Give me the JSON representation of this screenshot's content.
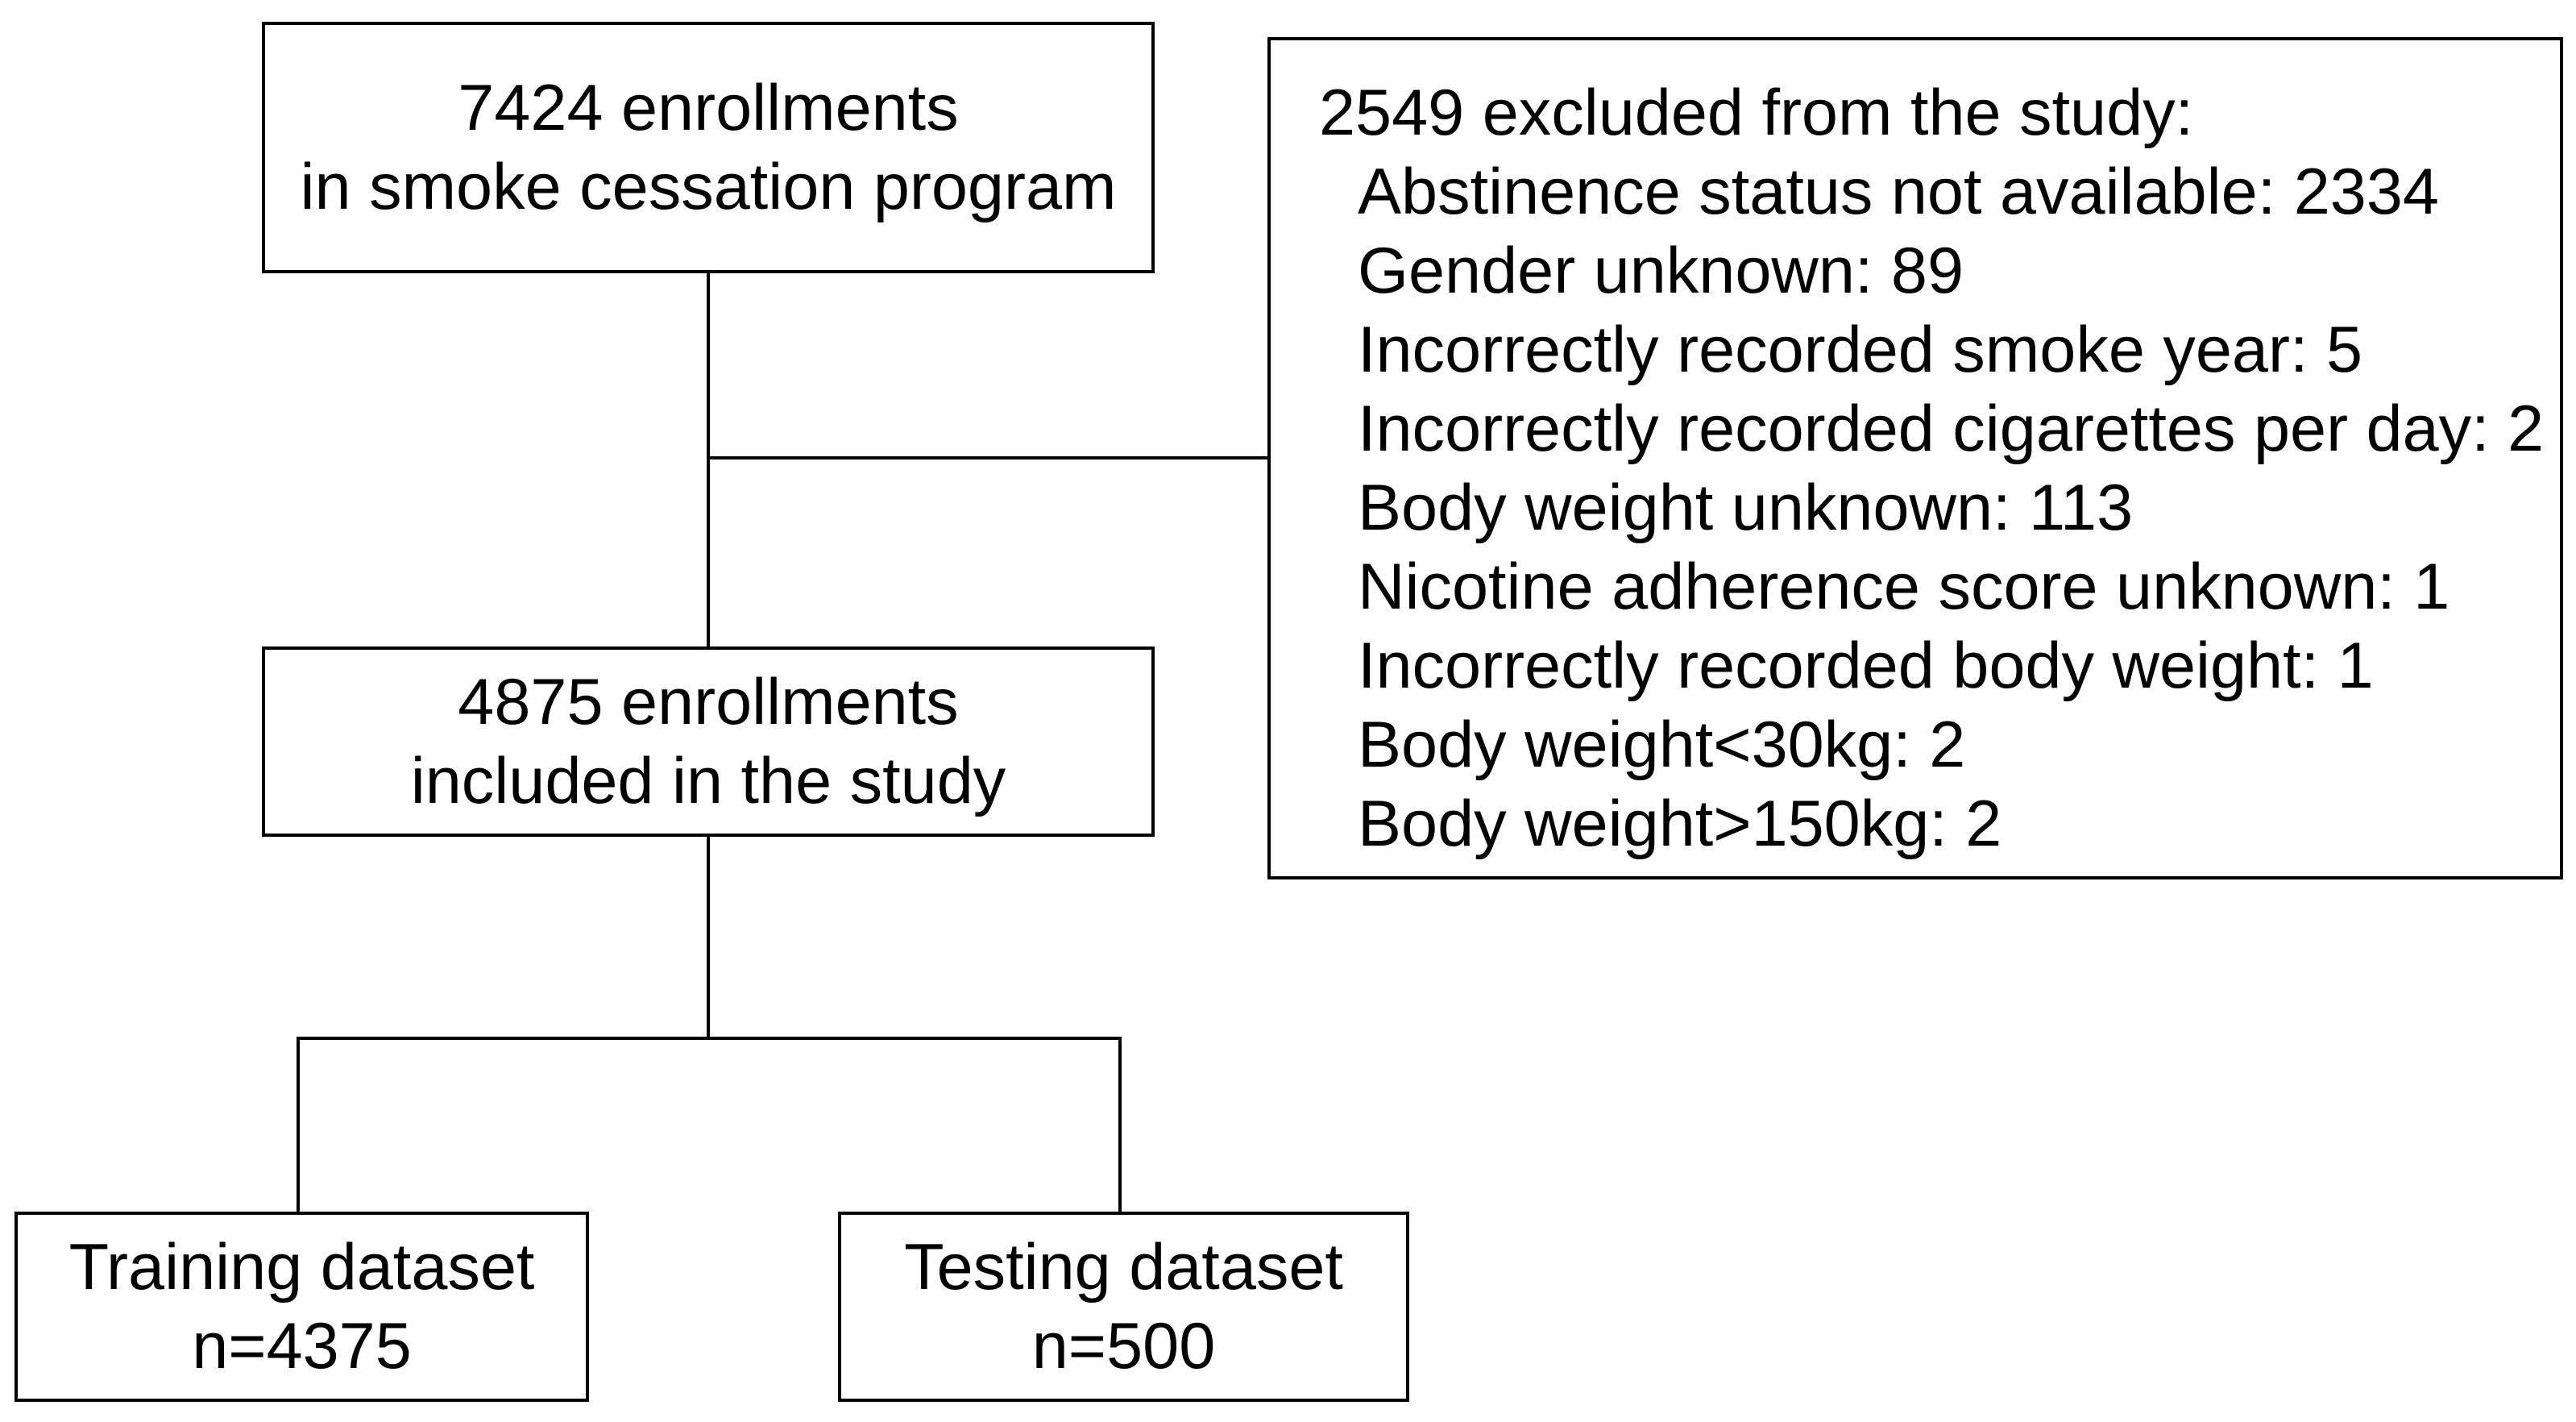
{
  "diagram": {
    "enrollment_box": {
      "line1": "7424 enrollments",
      "line2": "in smoke cessation program"
    },
    "excluded_box": {
      "header": "2549 excluded from the study:",
      "items": [
        "Abstinence status not available: 2334",
        "Gender unknown: 89",
        "Incorrectly recorded smoke year: 5",
        "Incorrectly recorded cigarettes per day: 2",
        "Body weight unknown: 113",
        "Nicotine adherence score unknown: 1",
        "Incorrectly recorded body weight: 1",
        "Body weight<30kg: 2",
        "Body weight>150kg: 2"
      ]
    },
    "included_box": {
      "line1": "4875 enrollments",
      "line2": "included in the study"
    },
    "training_box": {
      "line1": "Training dataset",
      "line2": "n=4375"
    },
    "testing_box": {
      "line1": "Testing dataset",
      "line2": "n=500"
    },
    "colors": {
      "border": "#000000",
      "text": "#000000",
      "background": "#ffffff"
    }
  }
}
